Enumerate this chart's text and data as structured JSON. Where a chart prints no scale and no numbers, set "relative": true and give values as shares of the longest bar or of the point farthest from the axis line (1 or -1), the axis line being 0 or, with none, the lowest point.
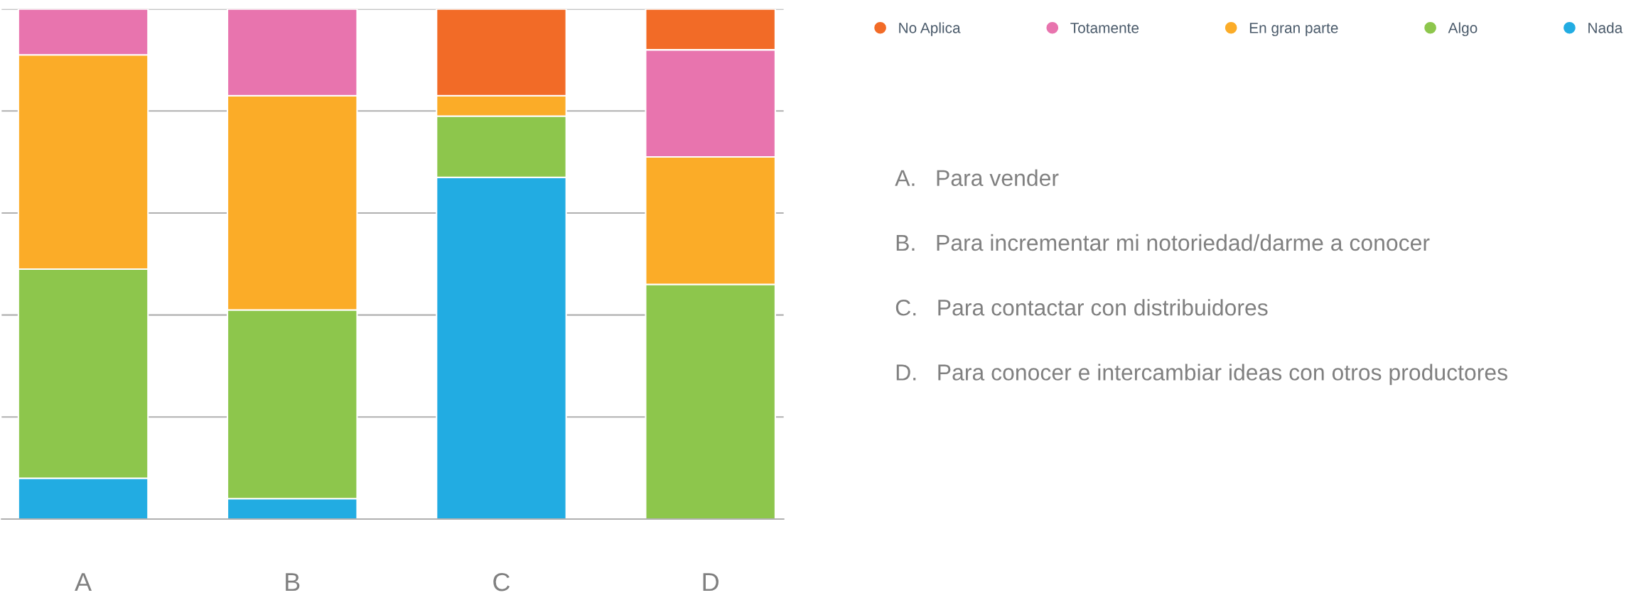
{
  "chart_data": {
    "type": "bar",
    "stacked": true,
    "relative": true,
    "grid": "y",
    "legend": "top right",
    "categories": [
      "A",
      "B",
      "C",
      "D"
    ],
    "series": [
      {
        "name": "Nada",
        "color": "#22ace2",
        "values": [
          0.08,
          0.04,
          0.67,
          0
        ]
      },
      {
        "name": "Algo",
        "color": "#8dc64c",
        "values": [
          0.41,
          0.37,
          0.12,
          0.46
        ]
      },
      {
        "name": "En gran parte",
        "color": "#fbac28",
        "values": [
          0.42,
          0.42,
          0.04,
          0.25
        ]
      },
      {
        "name": "Totamente",
        "color": "#e874ae",
        "values": [
          0.09,
          0.17,
          0,
          0.21
        ]
      },
      {
        "name": "No Aplica",
        "color": "#f26b27",
        "values": [
          0,
          0,
          0.17,
          0.08
        ]
      }
    ],
    "annotations": [
      "A.   Para vender",
      "B.   Para incrementar mi notoriedad/darme a conocer",
      "C.   Para contactar con distribuidores",
      "D.   Para conocer e intercambiar ideas con otros productores"
    ]
  }
}
